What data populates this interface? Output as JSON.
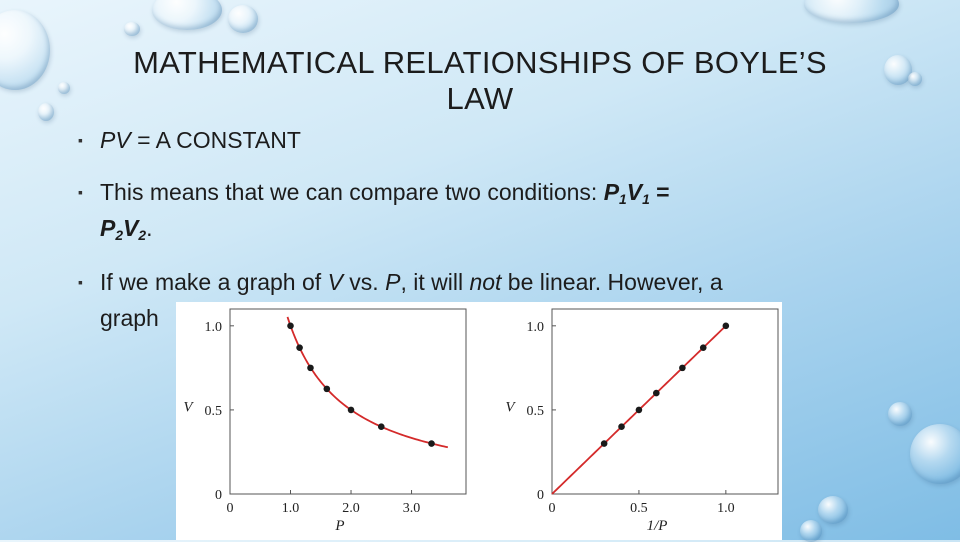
{
  "slide": {
    "title_line1": "MATHEMATICAL RELATIONSHIPS OF BOYLE’S",
    "title_line2": "LAW",
    "bullet_mark": "▪",
    "bullet1": {
      "pv": "PV",
      "rest": " = A CONSTANT"
    },
    "bullet2": {
      "text": "This means that we can compare two conditions:  ",
      "p1": "P",
      "s1": "1",
      "v1": "V",
      "s1b": "1",
      "eq": " =",
      "p2": "P",
      "s2": "2",
      "v2": "V",
      "s2b": "2",
      "end": "."
    },
    "bullet3": {
      "t1": "If we make a graph of ",
      "v": "V",
      "t2": " vs. ",
      "p": "P",
      "t3": ", it will ",
      "not": "not",
      "t4": " be linear. However, a",
      "line2": "graph"
    }
  },
  "chart_data": [
    {
      "type": "line",
      "xlabel": "P",
      "ylabel": "V",
      "xlim": [
        0,
        3.9
      ],
      "ylim": [
        0,
        1.1
      ],
      "x_ticks": [
        "0",
        "1.0",
        "2.0",
        "3.0"
      ],
      "y_ticks": [
        "0",
        "0.5",
        "1.0"
      ],
      "curve_color": "#d42a2a",
      "point_color": "#1a1a1a",
      "points": {
        "x": [
          1.0,
          1.15,
          1.33,
          1.6,
          2.0,
          2.5,
          3.33
        ],
        "y": [
          1.0,
          0.87,
          0.75,
          0.625,
          0.5,
          0.4,
          0.3
        ]
      },
      "curve_x_range": [
        0.95,
        3.6
      ]
    },
    {
      "type": "line",
      "xlabel": "1/P",
      "ylabel": "V",
      "xlim": [
        0,
        1.3
      ],
      "ylim": [
        0,
        1.1
      ],
      "x_ticks": [
        "0",
        "0.5",
        "1.0"
      ],
      "y_ticks": [
        "0",
        "0.5",
        "1.0"
      ],
      "curve_color": "#d42a2a",
      "point_color": "#1a1a1a",
      "points": {
        "x": [
          0.3,
          0.4,
          0.5,
          0.6,
          0.75,
          0.87,
          1.0
        ],
        "y": [
          0.3,
          0.4,
          0.5,
          0.6,
          0.75,
          0.87,
          1.0
        ]
      },
      "curve_x_range": [
        0.0,
        1.0
      ]
    }
  ]
}
